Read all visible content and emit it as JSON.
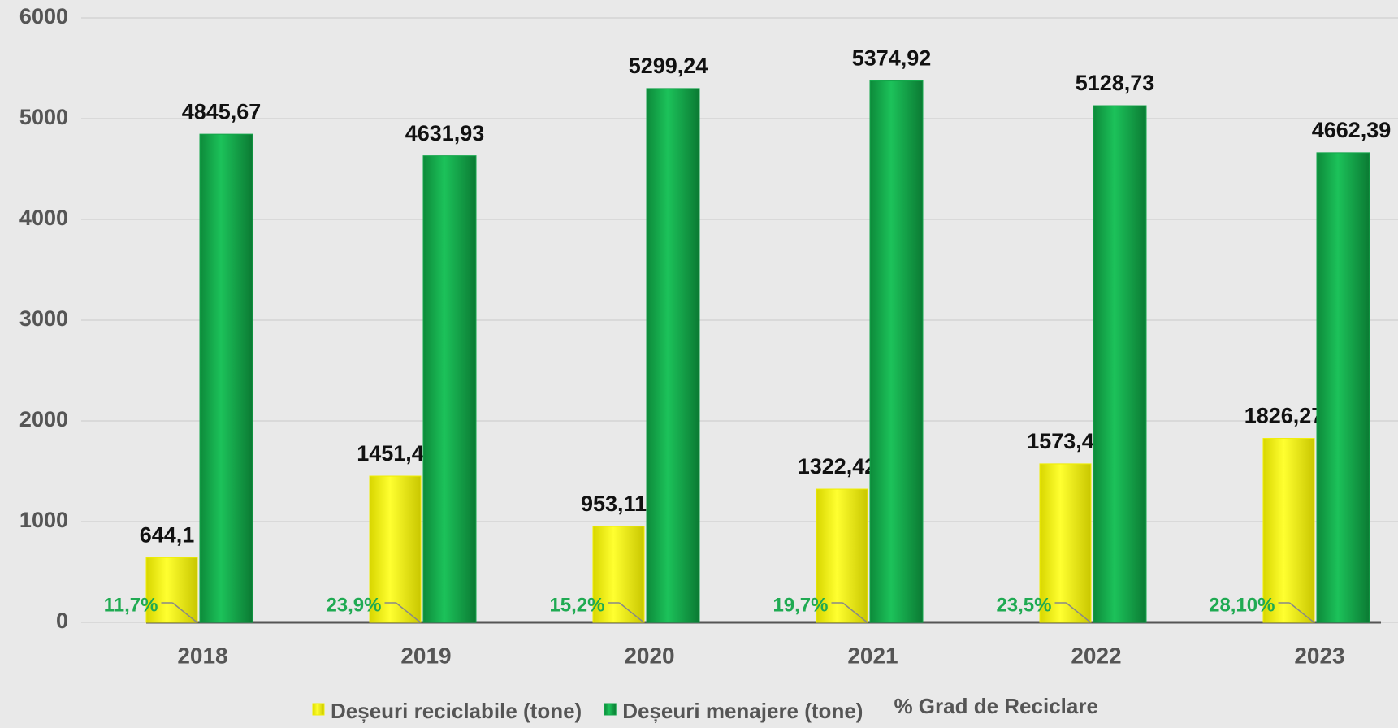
{
  "chart_data": {
    "type": "bar",
    "categories": [
      "2018",
      "2019",
      "2020",
      "2021",
      "2022",
      "2023"
    ],
    "ylim": [
      0,
      6000
    ],
    "yticks": [
      0,
      1000,
      2000,
      3000,
      4000,
      5000,
      6000
    ],
    "grid": true,
    "series": [
      {
        "name": "Deșeuri reciclabile (tone)",
        "color": "#f0ee00",
        "values": [
          644.1,
          1451.4,
          953.11,
          1322.42,
          1573.4,
          1826.27
        ],
        "value_labels": [
          "644,1",
          "1451,4",
          "953,11",
          "1322,42",
          "1573,4",
          "1826,27"
        ]
      },
      {
        "name": "Deșeuri menajere (tone)",
        "color": "#13a64a",
        "values": [
          4845.67,
          4631.93,
          5299.24,
          5374.92,
          5128.73,
          4662.39
        ],
        "value_labels": [
          "4845,67",
          "4631,93",
          "5299,24",
          "5374,92",
          "5128,73",
          "4662,39"
        ]
      },
      {
        "name": "% Grad de Reciclare",
        "color": "#1faa52",
        "values": [
          11.7,
          23.9,
          15.2,
          19.7,
          23.5,
          28.1
        ],
        "value_labels": [
          "11,7%",
          "23,9%",
          "15,2%",
          "19,7%",
          "23,5%",
          "28,10%"
        ]
      }
    ]
  }
}
